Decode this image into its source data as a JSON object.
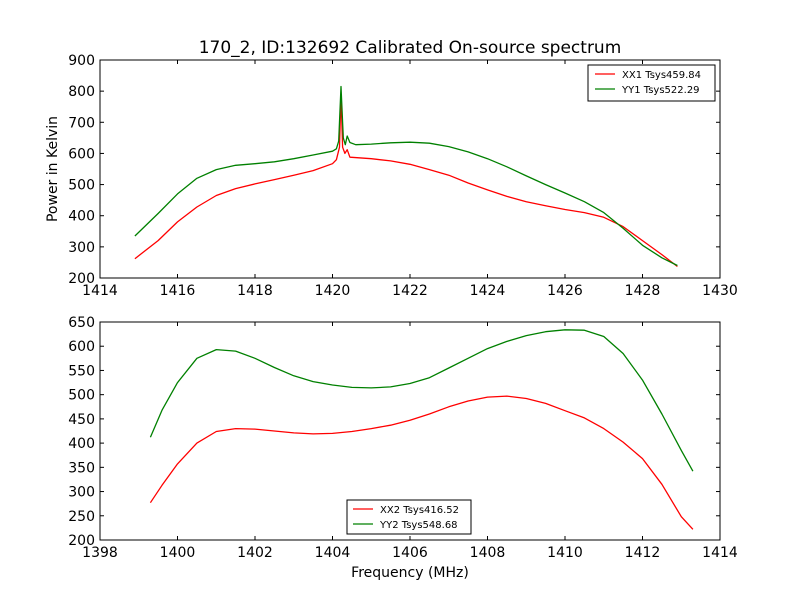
{
  "figure": {
    "title": "170_2, ID:132692 Calibrated On-source spectrum"
  },
  "chart_data": [
    {
      "type": "line",
      "title": "170_2, ID:132692 Calibrated On-source spectrum",
      "xlabel": "",
      "ylabel": "Power in Kelvin",
      "xlim": [
        1414,
        1430
      ],
      "ylim": [
        200,
        900
      ],
      "xticks": [
        1414,
        1416,
        1418,
        1420,
        1422,
        1424,
        1426,
        1428,
        1430
      ],
      "yticks": [
        200,
        300,
        400,
        500,
        600,
        700,
        800,
        900
      ],
      "grid": false,
      "legend_position": "top-right",
      "series": [
        {
          "name": "XX1 Tsys459.84",
          "color": "#ff0000",
          "points": [
            [
              1414.9,
              262
            ],
            [
              1415.5,
              320
            ],
            [
              1416,
              380
            ],
            [
              1416.5,
              428
            ],
            [
              1417,
              465
            ],
            [
              1417.5,
              487
            ],
            [
              1418,
              502
            ],
            [
              1418.5,
              516
            ],
            [
              1419,
              530
            ],
            [
              1419.5,
              545
            ],
            [
              1420,
              567
            ],
            [
              1420.1,
              580
            ],
            [
              1420.18,
              620
            ],
            [
              1420.22,
              790
            ],
            [
              1420.26,
              620
            ],
            [
              1420.32,
              600
            ],
            [
              1420.38,
              612
            ],
            [
              1420.45,
              588
            ],
            [
              1421,
              583
            ],
            [
              1421.5,
              576
            ],
            [
              1422,
              565
            ],
            [
              1422.5,
              548
            ],
            [
              1423,
              530
            ],
            [
              1423.5,
              505
            ],
            [
              1424,
              483
            ],
            [
              1424.5,
              462
            ],
            [
              1425,
              445
            ],
            [
              1425.5,
              432
            ],
            [
              1426,
              420
            ],
            [
              1426.5,
              410
            ],
            [
              1427,
              395
            ],
            [
              1427.5,
              365
            ],
            [
              1428,
              320
            ],
            [
              1428.5,
              275
            ],
            [
              1428.9,
              237
            ]
          ]
        },
        {
          "name": "YY1 Tsys522.29",
          "color": "#008000",
          "points": [
            [
              1414.9,
              335
            ],
            [
              1415.5,
              407
            ],
            [
              1416,
              470
            ],
            [
              1416.5,
              520
            ],
            [
              1417,
              548
            ],
            [
              1417.5,
              562
            ],
            [
              1418,
              567
            ],
            [
              1418.5,
              573
            ],
            [
              1419,
              583
            ],
            [
              1419.5,
              595
            ],
            [
              1420,
              607
            ],
            [
              1420.1,
              615
            ],
            [
              1420.16,
              640
            ],
            [
              1420.22,
              815
            ],
            [
              1420.28,
              650
            ],
            [
              1420.33,
              628
            ],
            [
              1420.38,
              656
            ],
            [
              1420.45,
              635
            ],
            [
              1420.6,
              628
            ],
            [
              1421,
              630
            ],
            [
              1421.5,
              634
            ],
            [
              1422,
              636
            ],
            [
              1422.5,
              633
            ],
            [
              1423,
              622
            ],
            [
              1423.5,
              605
            ],
            [
              1424,
              583
            ],
            [
              1424.5,
              557
            ],
            [
              1425,
              528
            ],
            [
              1425.5,
              500
            ],
            [
              1426,
              473
            ],
            [
              1426.5,
              445
            ],
            [
              1427,
              410
            ],
            [
              1427.5,
              360
            ],
            [
              1428,
              305
            ],
            [
              1428.5,
              265
            ],
            [
              1428.9,
              240
            ]
          ]
        }
      ]
    },
    {
      "type": "line",
      "title": "",
      "xlabel": "Frequency (MHz)",
      "ylabel": "",
      "xlim": [
        1398,
        1414
      ],
      "ylim": [
        200,
        650
      ],
      "xticks": [
        1398,
        1400,
        1402,
        1404,
        1406,
        1408,
        1410,
        1412,
        1414
      ],
      "yticks": [
        200,
        250,
        300,
        350,
        400,
        450,
        500,
        550,
        600,
        650
      ],
      "grid": false,
      "legend_position": "lower-center",
      "series": [
        {
          "name": "XX2 Tsys416.52",
          "color": "#ff0000",
          "points": [
            [
              1399.3,
              277
            ],
            [
              1399.6,
              313
            ],
            [
              1400,
              357
            ],
            [
              1400.5,
              400
            ],
            [
              1401,
              424
            ],
            [
              1401.5,
              430
            ],
            [
              1402,
              429
            ],
            [
              1402.5,
              425
            ],
            [
              1403,
              421
            ],
            [
              1403.5,
              419
            ],
            [
              1404,
              420
            ],
            [
              1404.5,
              424
            ],
            [
              1405,
              430
            ],
            [
              1405.5,
              437
            ],
            [
              1406,
              447
            ],
            [
              1406.5,
              460
            ],
            [
              1407,
              475
            ],
            [
              1407.5,
              487
            ],
            [
              1408,
              495
            ],
            [
              1408.5,
              497
            ],
            [
              1409,
              492
            ],
            [
              1409.5,
              482
            ],
            [
              1410,
              467
            ],
            [
              1410.5,
              452
            ],
            [
              1411,
              430
            ],
            [
              1411.5,
              402
            ],
            [
              1412,
              368
            ],
            [
              1412.5,
              315
            ],
            [
              1413,
              248
            ],
            [
              1413.3,
              222
            ]
          ]
        },
        {
          "name": "YY2 Tsys548.68",
          "color": "#008000",
          "points": [
            [
              1399.3,
              412
            ],
            [
              1399.6,
              468
            ],
            [
              1400,
              525
            ],
            [
              1400.5,
              575
            ],
            [
              1401,
              593
            ],
            [
              1401.5,
              590
            ],
            [
              1402,
              575
            ],
            [
              1402.5,
              556
            ],
            [
              1403,
              539
            ],
            [
              1403.5,
              527
            ],
            [
              1404,
              520
            ],
            [
              1404.5,
              515
            ],
            [
              1405,
              514
            ],
            [
              1405.5,
              516
            ],
            [
              1406,
              523
            ],
            [
              1406.5,
              535
            ],
            [
              1407,
              555
            ],
            [
              1407.5,
              575
            ],
            [
              1408,
              595
            ],
            [
              1408.5,
              610
            ],
            [
              1409,
              622
            ],
            [
              1409.5,
              630
            ],
            [
              1410,
              634
            ],
            [
              1410.5,
              633
            ],
            [
              1411,
              620
            ],
            [
              1411.5,
              585
            ],
            [
              1412,
              530
            ],
            [
              1412.5,
              460
            ],
            [
              1413,
              385
            ],
            [
              1413.3,
              342
            ]
          ]
        }
      ]
    }
  ]
}
